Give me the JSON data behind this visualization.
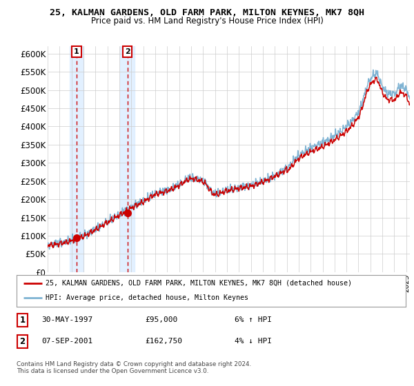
{
  "title": "25, KALMAN GARDENS, OLD FARM PARK, MILTON KEYNES, MK7 8QH",
  "subtitle": "Price paid vs. HM Land Registry's House Price Index (HPI)",
  "ytick_vals": [
    0,
    50000,
    100000,
    150000,
    200000,
    250000,
    300000,
    350000,
    400000,
    450000,
    500000,
    550000,
    600000
  ],
  "ylim": [
    0,
    620000
  ],
  "xlim_start": 1995,
  "xlim_end": 2025.3,
  "sale1_x": 1997.42,
  "sale1_price": 95000,
  "sale1_label": "1",
  "sale1_date_str": "30-MAY-1997",
  "sale1_pct": "6% ↑ HPI",
  "sale2_x": 2001.68,
  "sale2_price": 162750,
  "sale2_label": "2",
  "sale2_date_str": "07-SEP-2001",
  "sale2_pct": "4% ↓ HPI",
  "legend_red_label": "25, KALMAN GARDENS, OLD FARM PARK, MILTON KEYNES, MK7 8QH (detached house)",
  "legend_blue_label": "HPI: Average price, detached house, Milton Keynes",
  "footnote": "Contains HM Land Registry data © Crown copyright and database right 2024.\nThis data is licensed under the Open Government Licence v3.0.",
  "red_color": "#cc0000",
  "blue_color": "#7fb3d3",
  "shade_color": "#ddeeff",
  "grid_color": "#cccccc",
  "bg_color": "#ffffff"
}
